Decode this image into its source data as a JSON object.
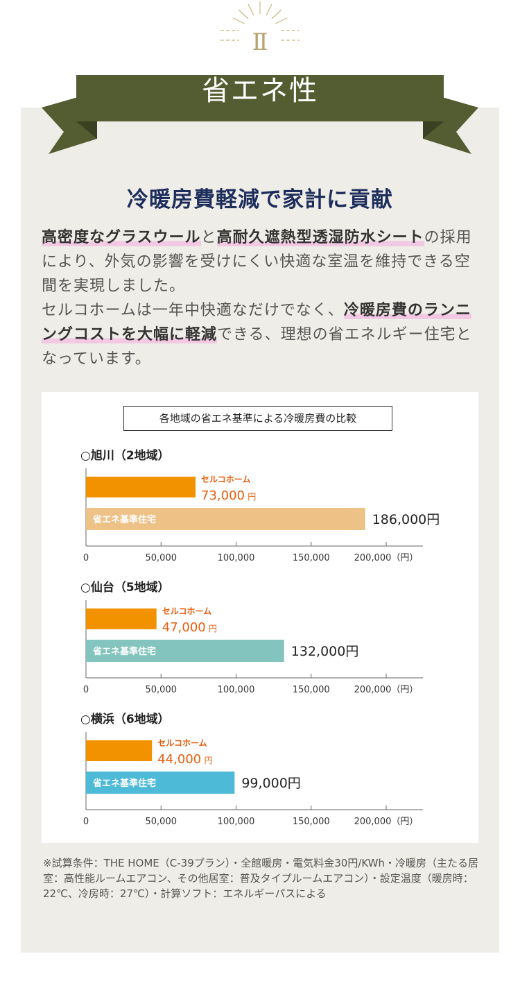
{
  "header": {
    "numeral": "Ⅱ",
    "banner_title": "省エネ性"
  },
  "main": {
    "headline": "冷暖房費軽減で家計に貢献",
    "paragraph1": [
      {
        "text": "高密度なグラスウール",
        "hl": true
      },
      {
        "text": "と",
        "hl": false
      },
      {
        "text": "高耐久遮熱型透湿防水シート",
        "hl": true
      },
      {
        "text": "の採用により、外気の影響を受けにくい快適な室温を維持できる空間を実現しました。",
        "hl": false
      }
    ],
    "paragraph2": [
      {
        "text": "セルコホームは一年中快適なだけでなく、",
        "hl": false
      },
      {
        "text": "冷暖房費のランニングコストを大幅に軽減",
        "hl": true
      },
      {
        "text": "できる、理想の省エネルギー住宅となっています。",
        "hl": false
      }
    ]
  },
  "chart_title": "各地域の省エネ基準による冷暖房費の比較",
  "colors": {
    "banner": "#545c31",
    "banner_dark": "#3a4022",
    "highlight": "#f3c8e2",
    "selco_bar": "#f39200",
    "selco_label": "#e85d0c",
    "headline": "#1d2d5c"
  },
  "chart_data": [
    {
      "type": "bar",
      "title": "○旭川（2地域）",
      "categories": [
        "セルコホーム",
        "省エネ基準住宅"
      ],
      "values": [
        73000,
        186000
      ],
      "value_labels": [
        "73,000",
        "186,000円"
      ],
      "unit": "円",
      "bar_colors": [
        "#f39200",
        "#eec186"
      ],
      "xlim": [
        0,
        200000
      ],
      "ticks": [
        "0",
        "50,000",
        "100,000",
        "150,000",
        "200,000（円）"
      ]
    },
    {
      "type": "bar",
      "title": "○仙台（5地域）",
      "categories": [
        "セルコホーム",
        "省エネ基準住宅"
      ],
      "values": [
        47000,
        132000
      ],
      "value_labels": [
        "47,000",
        "132,000円"
      ],
      "unit": "円",
      "bar_colors": [
        "#f39200",
        "#83c4be"
      ],
      "xlim": [
        0,
        200000
      ],
      "ticks": [
        "0",
        "50,000",
        "100,000",
        "150,000",
        "200,000（円）"
      ]
    },
    {
      "type": "bar",
      "title": "○横浜（6地域）",
      "categories": [
        "セルコホーム",
        "省エネ基準住宅"
      ],
      "values": [
        44000,
        99000
      ],
      "value_labels": [
        "44,000",
        "99,000円"
      ],
      "unit": "円",
      "bar_colors": [
        "#f39200",
        "#4dbad7"
      ],
      "xlim": [
        0,
        200000
      ],
      "ticks": [
        "0",
        "50,000",
        "100,000",
        "150,000",
        "200,000（円）"
      ]
    }
  ],
  "footnote": "※試算条件：THE HOME（C-39プラン）・全館暖房・電気料金30円/KWh・冷暖房（主たる居室：高性能ルームエアコン、その他居室：普及タイプルームエアコン）・設定温度（暖房時：22℃、冷房時：27℃）・計算ソフト：エネルギーパスによる"
}
